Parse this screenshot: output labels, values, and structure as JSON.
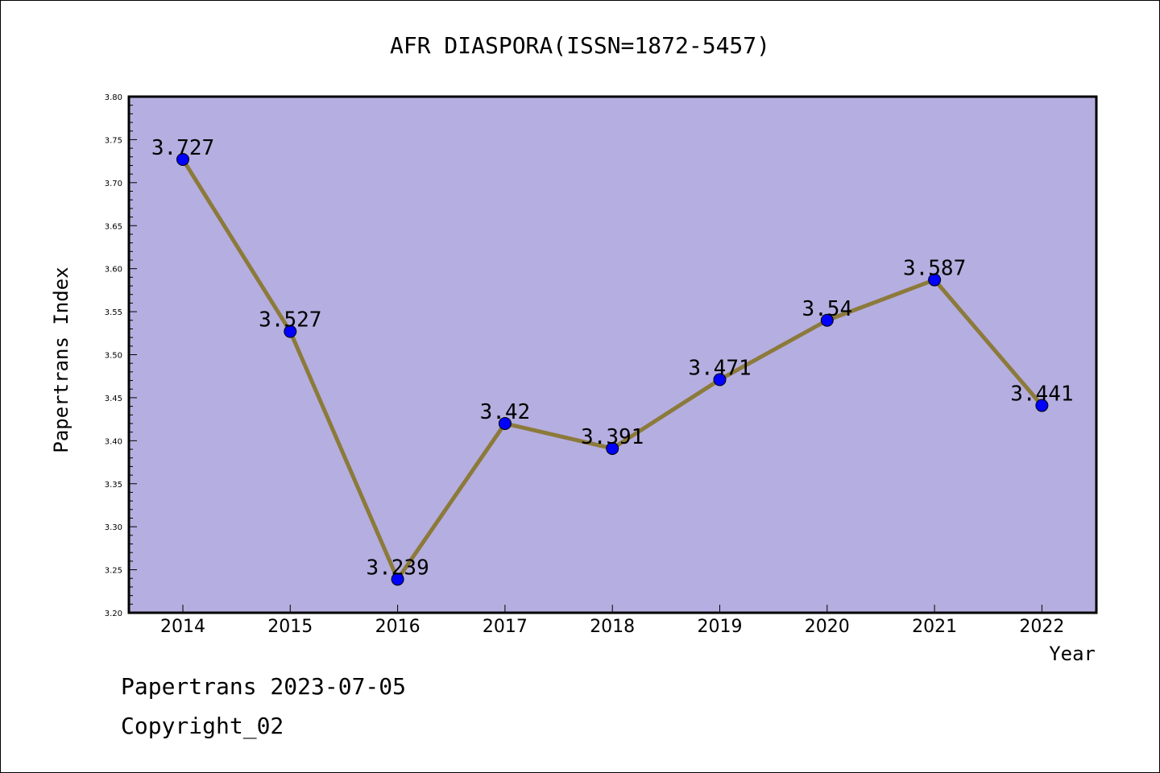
{
  "chart_data": {
    "type": "line",
    "title": "AFR DIASPORA(ISSN=1872-5457)",
    "xlabel": "Year",
    "ylabel": "Papertrans Index",
    "categories": [
      "2014",
      "2015",
      "2016",
      "2017",
      "2018",
      "2019",
      "2020",
      "2021",
      "2022"
    ],
    "series": [
      {
        "values": [
          3.727,
          3.527,
          3.239,
          3.42,
          3.391,
          3.471,
          3.54,
          3.587,
          3.441
        ],
        "data_labels": [
          "3.727",
          "3.527",
          "3.239",
          "3.42",
          "3.391",
          "3.471",
          "3.54",
          "3.587",
          "3.441"
        ],
        "line_color": "#8b7a3a",
        "marker_color": "#0000ff"
      }
    ],
    "ylim": [
      3.2,
      3.8
    ],
    "y_ticks": [
      "3.20",
      "3.25",
      "3.30",
      "3.35",
      "3.40",
      "3.45",
      "3.50",
      "3.55",
      "3.60",
      "3.65",
      "3.70",
      "3.75",
      "3.80"
    ],
    "plot_background": "#b5aee0",
    "grid": false,
    "legend": "none"
  },
  "footer": {
    "date_text": "Papertrans 2023-07-05",
    "copyright_text": "Copyright_02"
  }
}
